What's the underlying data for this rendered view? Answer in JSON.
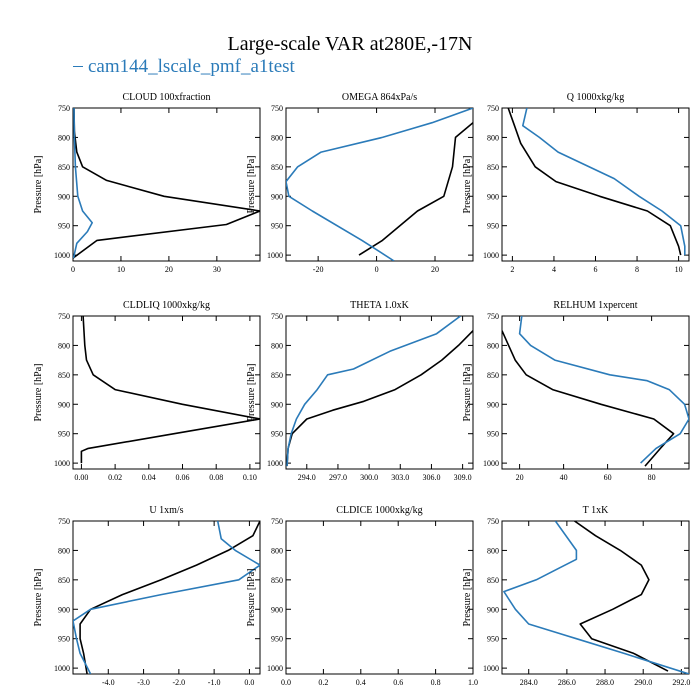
{
  "title": "Large-scale VAR at280E,-17N",
  "legend_label": "cam144_lscale_pmf_a1test",
  "colors": {
    "series_primary": "#000000",
    "series_secondary": "#2b7bb9"
  },
  "chart_data": [
    {
      "type": "line",
      "title": "CLOUD 100xfraction",
      "ylabel": "Pressure [hPa]",
      "xlim": [
        0,
        39
      ],
      "ylim": [
        1010,
        750
      ],
      "xticks": [
        0,
        10,
        20,
        30
      ],
      "xtick_labels": [
        "0",
        "10",
        "20",
        "30"
      ],
      "yticks": [
        750,
        800,
        850,
        900,
        950,
        1000
      ],
      "ytick_labels": [
        "750",
        "800",
        "850",
        "900",
        "950",
        "1000"
      ],
      "series": [
        {
          "points": [
            [
              0,
              1005
            ],
            [
              5,
              975
            ],
            [
              32,
              948
            ],
            [
              39,
              925
            ],
            [
              19,
              900
            ],
            [
              7,
              873
            ],
            [
              2,
              850
            ],
            [
              0.8,
              825
            ],
            [
              0.3,
              790
            ],
            [
              0.2,
              750
            ]
          ]
        },
        {
          "points": [
            [
              0.1,
              1005
            ],
            [
              0.8,
              980
            ],
            [
              3,
              960
            ],
            [
              4,
              945
            ],
            [
              2,
              925
            ],
            [
              1,
              900
            ],
            [
              0.5,
              850
            ],
            [
              0.3,
              800
            ],
            [
              0.2,
              750
            ]
          ]
        }
      ]
    },
    {
      "type": "line",
      "title": "OMEGA 864xPa/s",
      "ylabel": "Pressure [hPa]",
      "xlim": [
        -31,
        33
      ],
      "ylim": [
        1010,
        750
      ],
      "xticks": [
        -20,
        0,
        20
      ],
      "xtick_labels": [
        "-20",
        "0",
        "20"
      ],
      "yticks": [
        750,
        800,
        850,
        900,
        950,
        1000
      ],
      "ytick_labels": [
        "750",
        "800",
        "850",
        "900",
        "950",
        "1000"
      ],
      "series": [
        {
          "points": [
            [
              -6,
              1000
            ],
            [
              2,
              975
            ],
            [
              14,
              925
            ],
            [
              23,
              900
            ],
            [
              26,
              850
            ],
            [
              27,
              800
            ],
            [
              33,
              775
            ]
          ]
        },
        {
          "points": [
            [
              6,
              1010
            ],
            [
              -5,
              975
            ],
            [
              -22,
              925
            ],
            [
              -30,
              900
            ],
            [
              -31,
              875
            ],
            [
              -27,
              850
            ],
            [
              -19,
              825
            ],
            [
              2,
              800
            ],
            [
              19,
              775
            ],
            [
              33,
              750
            ]
          ]
        }
      ]
    },
    {
      "type": "line",
      "title": "Q 1000xkg/kg",
      "ylabel": "Pressure [hPa]",
      "xlim": [
        1.5,
        10.5
      ],
      "ylim": [
        1010,
        750
      ],
      "xticks": [
        2,
        4,
        6,
        8,
        10
      ],
      "xtick_labels": [
        "2",
        "4",
        "6",
        "8",
        "10"
      ],
      "yticks": [
        750,
        800,
        850,
        900,
        950,
        1000
      ],
      "ytick_labels": [
        "750",
        "800",
        "850",
        "900",
        "950",
        "1000"
      ],
      "series": [
        {
          "points": [
            [
              10.1,
              1000
            ],
            [
              10,
              985
            ],
            [
              9.6,
              950
            ],
            [
              8.5,
              925
            ],
            [
              6.2,
              900
            ],
            [
              4.1,
              875
            ],
            [
              3.1,
              850
            ],
            [
              2.4,
              810
            ],
            [
              2.1,
              780
            ],
            [
              1.8,
              750
            ]
          ]
        },
        {
          "points": [
            [
              10.3,
              1000
            ],
            [
              10.3,
              985
            ],
            [
              10.1,
              950
            ],
            [
              9.2,
              925
            ],
            [
              8.1,
              900
            ],
            [
              6.9,
              870
            ],
            [
              4.2,
              825
            ],
            [
              3.3,
              800
            ],
            [
              2.5,
              780
            ],
            [
              2.7,
              750
            ]
          ]
        }
      ]
    },
    {
      "type": "line",
      "title": "CLDLIQ 1000xkg/kg",
      "ylabel": "Pressure [hPa]",
      "xlim": [
        -0.005,
        0.106
      ],
      "ylim": [
        1010,
        750
      ],
      "xticks": [
        0,
        0.02,
        0.04,
        0.06,
        0.08,
        0.1
      ],
      "xtick_labels": [
        "0.00",
        "0.02",
        "0.04",
        "0.06",
        "0.08",
        "0.10"
      ],
      "yticks": [
        750,
        800,
        850,
        900,
        950,
        1000
      ],
      "ytick_labels": [
        "750",
        "800",
        "850",
        "900",
        "950",
        "1000"
      ],
      "series": [
        {
          "points": [
            [
              0,
              1000
            ],
            [
              0,
              980
            ],
            [
              0.004,
              975
            ],
            [
              0.055,
              950
            ],
            [
              0.106,
              925
            ],
            [
              0.06,
              900
            ],
            [
              0.02,
              875
            ],
            [
              0.007,
              850
            ],
            [
              0.003,
              825
            ],
            [
              0.002,
              800
            ],
            [
              0.001,
              750
            ]
          ]
        }
      ]
    },
    {
      "type": "line",
      "title": "THETA 1.0xK",
      "ylabel": "Pressure [hPa]",
      "xlim": [
        292,
        310
      ],
      "ylim": [
        1010,
        750
      ],
      "xticks": [
        294,
        297,
        300,
        303,
        306,
        309
      ],
      "xtick_labels": [
        "294.0",
        "297.0",
        "300.0",
        "303.0",
        "306.0",
        "309.0"
      ],
      "yticks": [
        750,
        800,
        850,
        900,
        950,
        1000
      ],
      "ytick_labels": [
        "750",
        "800",
        "850",
        "900",
        "950",
        "1000"
      ],
      "series": [
        {
          "points": [
            [
              292.1,
              1005
            ],
            [
              292.2,
              975
            ],
            [
              292.6,
              950
            ],
            [
              294,
              925
            ],
            [
              296.5,
              910
            ],
            [
              299.5,
              895
            ],
            [
              302.5,
              875
            ],
            [
              305,
              850
            ],
            [
              307,
              825
            ],
            [
              308.6,
              800
            ],
            [
              310,
              775
            ]
          ]
        },
        {
          "points": [
            [
              292.1,
              1005
            ],
            [
              292.2,
              975
            ],
            [
              292.5,
              950
            ],
            [
              293,
              925
            ],
            [
              293.8,
              900
            ],
            [
              295,
              875
            ],
            [
              296,
              850
            ],
            [
              298.5,
              840
            ],
            [
              302,
              810
            ],
            [
              306.5,
              780
            ],
            [
              308.8,
              750
            ]
          ]
        }
      ]
    },
    {
      "type": "line",
      "title": "RELHUM 1xpercent",
      "ylabel": "Pressure [hPa]",
      "xlim": [
        12,
        97
      ],
      "ylim": [
        1010,
        750
      ],
      "xticks": [
        20,
        40,
        60,
        80
      ],
      "xtick_labels": [
        "20",
        "40",
        "60",
        "80"
      ],
      "yticks": [
        750,
        800,
        850,
        900,
        950,
        1000
      ],
      "ytick_labels": [
        "750",
        "800",
        "850",
        "900",
        "950",
        "1000"
      ],
      "series": [
        {
          "points": [
            [
              77,
              1005
            ],
            [
              84,
              975
            ],
            [
              90,
              950
            ],
            [
              81,
              925
            ],
            [
              57,
              900
            ],
            [
              35,
              875
            ],
            [
              23,
              850
            ],
            [
              18,
              825
            ],
            [
              15,
              800
            ],
            [
              12,
              775
            ]
          ]
        },
        {
          "points": [
            [
              75,
              1000
            ],
            [
              82,
              975
            ],
            [
              93,
              950
            ],
            [
              97,
              925
            ],
            [
              95,
              900
            ],
            [
              88,
              875
            ],
            [
              78,
              860
            ],
            [
              61,
              850
            ],
            [
              36,
              825
            ],
            [
              25,
              800
            ],
            [
              20,
              780
            ],
            [
              21,
              750
            ]
          ]
        }
      ]
    },
    {
      "type": "line",
      "title": "U 1xm/s",
      "ylabel": "Pressure [hPa]",
      "xlim": [
        -5,
        0.3
      ],
      "ylim": [
        1010,
        750
      ],
      "xticks": [
        -4,
        -3,
        -2,
        -1,
        0
      ],
      "xtick_labels": [
        "-4.0",
        "-3.0",
        "-2.0",
        "-1.0",
        "0.0"
      ],
      "yticks": [
        750,
        800,
        850,
        900,
        950,
        1000
      ],
      "ytick_labels": [
        "750",
        "800",
        "850",
        "900",
        "950",
        "1000"
      ],
      "series": [
        {
          "points": [
            [
              -4.6,
              1010
            ],
            [
              -4.7,
              975
            ],
            [
              -4.8,
              950
            ],
            [
              -4.8,
              925
            ],
            [
              -4.5,
              900
            ],
            [
              -3.6,
              875
            ],
            [
              -2.5,
              850
            ],
            [
              -1.5,
              825
            ],
            [
              -0.6,
              800
            ],
            [
              0.1,
              775
            ],
            [
              0.3,
              750
            ]
          ]
        },
        {
          "points": [
            [
              -4.5,
              1010
            ],
            [
              -4.8,
              975
            ],
            [
              -4.9,
              950
            ],
            [
              -5,
              920
            ],
            [
              -4.5,
              900
            ],
            [
              -2.5,
              875
            ],
            [
              -0.3,
              850
            ],
            [
              0.3,
              825
            ],
            [
              -0.4,
              800
            ],
            [
              -0.8,
              780
            ],
            [
              -0.9,
              750
            ]
          ]
        }
      ]
    },
    {
      "type": "line",
      "title": "CLDICE 1000xkg/kg",
      "ylabel": "Pressure [hPa]",
      "xlim": [
        0,
        1
      ],
      "ylim": [
        1010,
        750
      ],
      "xticks": [
        0,
        0.2,
        0.4,
        0.6,
        0.8,
        1.0
      ],
      "xtick_labels": [
        "0.0",
        "0.2",
        "0.4",
        "0.6",
        "0.8",
        "1.0"
      ],
      "yticks": [
        750,
        800,
        850,
        900,
        950,
        1000
      ],
      "ytick_labels": [
        "750",
        "800",
        "850",
        "900",
        "950",
        "1000"
      ],
      "series": []
    },
    {
      "type": "line",
      "title": "T 1xK",
      "ylabel": "Pressure [hPa]",
      "xlim": [
        282.6,
        292.4
      ],
      "ylim": [
        1010,
        750
      ],
      "xticks": [
        284,
        286,
        288,
        290,
        292
      ],
      "xtick_labels": [
        "284.0",
        "286.0",
        "288.0",
        "290.0",
        "292.0"
      ],
      "yticks": [
        750,
        800,
        850,
        900,
        950,
        1000
      ],
      "ytick_labels": [
        "750",
        "800",
        "850",
        "900",
        "950",
        "1000"
      ],
      "series": [
        {
          "points": [
            [
              291.3,
              1005
            ],
            [
              289.5,
              975
            ],
            [
              287.3,
              950
            ],
            [
              286.7,
              925
            ],
            [
              288.4,
              900
            ],
            [
              289.9,
              875
            ],
            [
              290.3,
              850
            ],
            [
              289.9,
              825
            ],
            [
              288.8,
              800
            ],
            [
              287.5,
              775
            ],
            [
              286.4,
              750
            ]
          ]
        },
        {
          "points": [
            [
              292.4,
              1010
            ],
            [
              289,
              975
            ],
            [
              286.5,
              950
            ],
            [
              284,
              925
            ],
            [
              283.3,
              900
            ],
            [
              282.7,
              870
            ],
            [
              284.4,
              850
            ],
            [
              285.6,
              830
            ],
            [
              286.5,
              815
            ],
            [
              286.5,
              800
            ],
            [
              285.4,
              750
            ]
          ]
        }
      ]
    }
  ]
}
